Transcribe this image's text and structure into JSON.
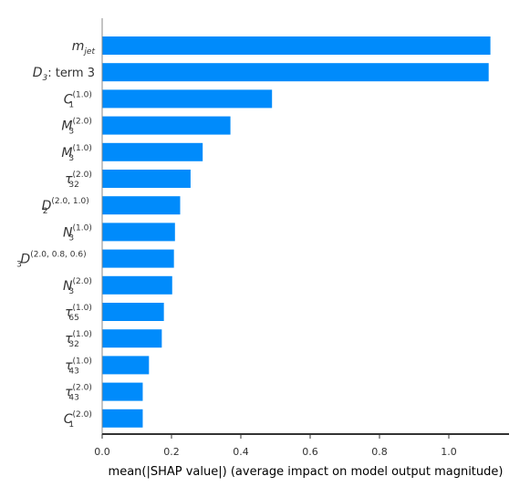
{
  "chart_data": {
    "type": "bar",
    "orientation": "horizontal",
    "title": "",
    "xlabel": "mean(|SHAP value|) (average impact on model output magnitude)",
    "ylabel": "",
    "xlim": [
      0,
      1.12
    ],
    "xticks": [
      "0.0",
      "0.2",
      "0.4",
      "0.6",
      "0.8",
      "1.0"
    ],
    "grid": false,
    "legend": "none",
    "bar_color": "#008bfb",
    "categories": [
      {
        "label": "m",
        "sub": "jet",
        "sup": "",
        "suffix": ""
      },
      {
        "label": "D",
        "sub": "3",
        "sup": "",
        "suffix": ": term 3"
      },
      {
        "label": "C",
        "sub": "1",
        "sup": "(1.0)",
        "suffix": ""
      },
      {
        "label": "M",
        "sub": "3",
        "sup": "(2.0)",
        "suffix": ""
      },
      {
        "label": "M",
        "sub": "3",
        "sup": "(1.0)",
        "suffix": ""
      },
      {
        "label": "τ",
        "sub": "32",
        "sup": "(2.0)",
        "suffix": ""
      },
      {
        "label": "D",
        "sub": "2",
        "sup": "(2.0, 1.0)",
        "suffix": ""
      },
      {
        "label": "N",
        "sub": "3",
        "sup": "(1.0)",
        "suffix": ""
      },
      {
        "label": "D",
        "sub": "3",
        "sup": "(2.0, 0.8, 0.6)",
        "suffix": ""
      },
      {
        "label": "N",
        "sub": "3",
        "sup": "(2.0)",
        "suffix": ""
      },
      {
        "label": "τ",
        "sub": "65",
        "sup": "(1.0)",
        "suffix": ""
      },
      {
        "label": "τ",
        "sub": "32",
        "sup": "(1.0)",
        "suffix": ""
      },
      {
        "label": "τ",
        "sub": "43",
        "sup": "(1.0)",
        "suffix": ""
      },
      {
        "label": "τ",
        "sub": "43",
        "sup": "(2.0)",
        "suffix": ""
      },
      {
        "label": "C",
        "sub": "1",
        "sup": "(2.0)",
        "suffix": ""
      }
    ],
    "values": [
      1.12,
      1.115,
      0.49,
      0.37,
      0.29,
      0.255,
      0.225,
      0.21,
      0.207,
      0.202,
      0.178,
      0.172,
      0.135,
      0.117,
      0.117
    ]
  }
}
